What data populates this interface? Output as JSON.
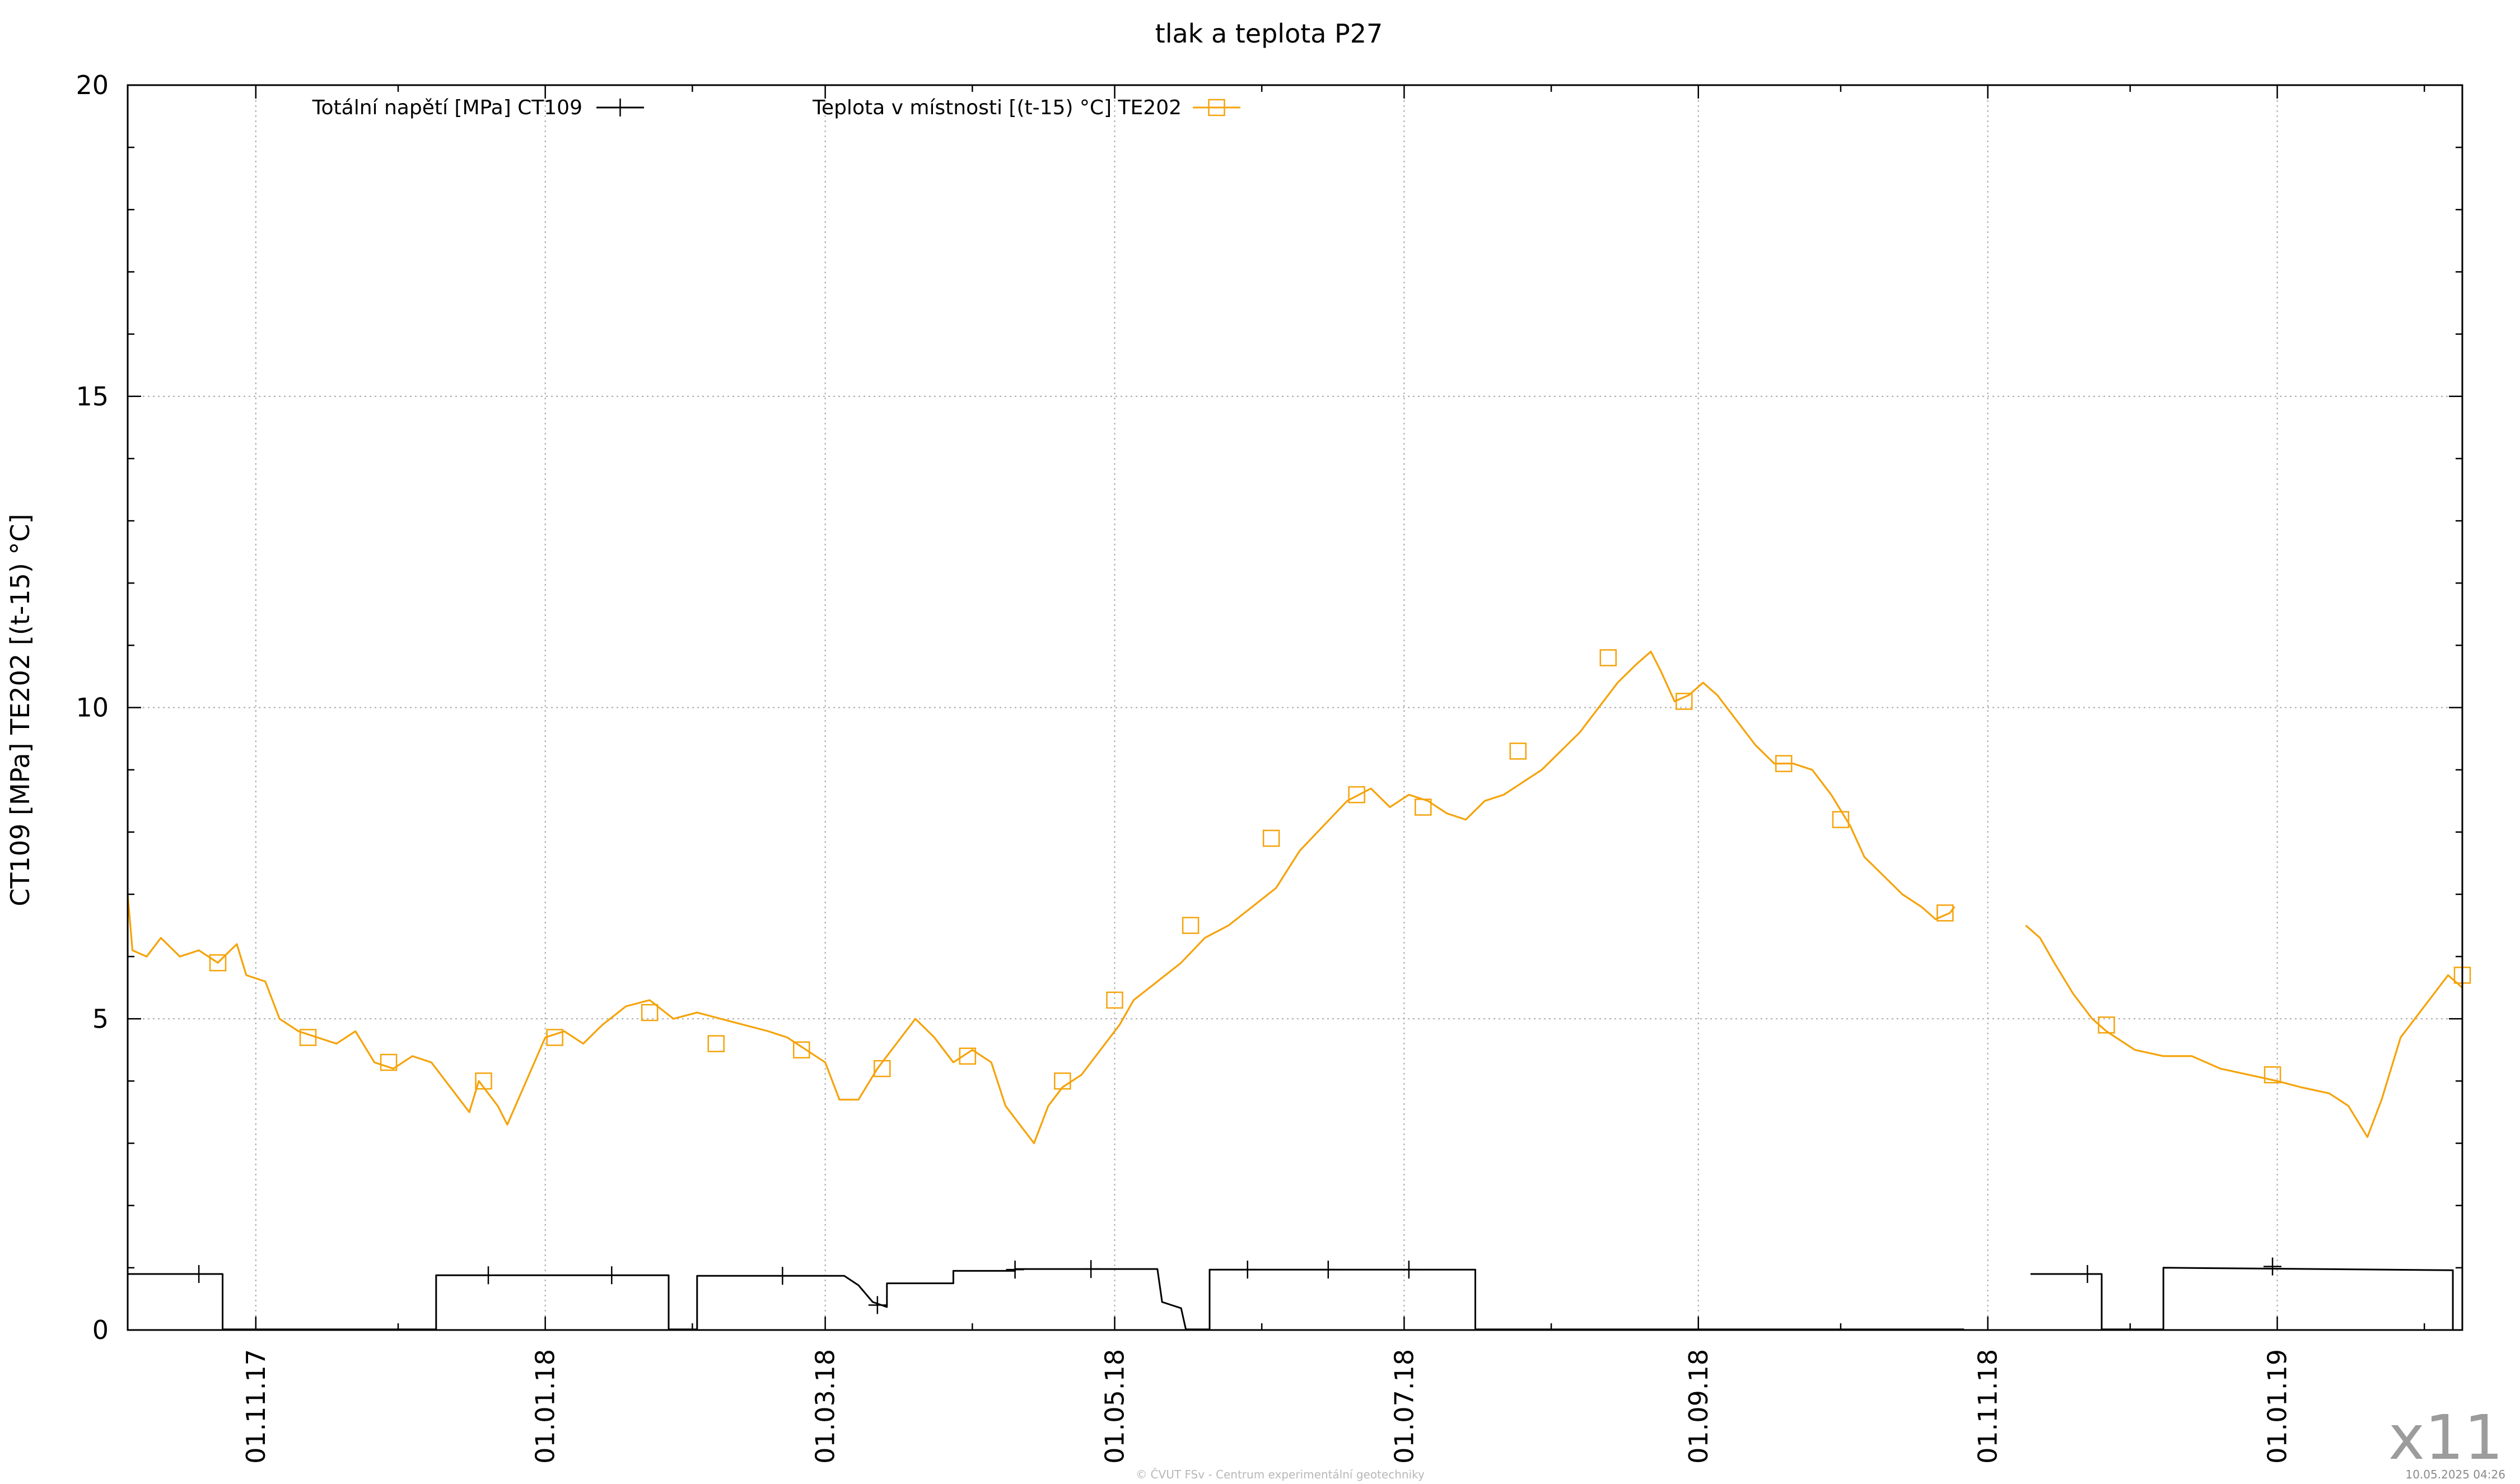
{
  "chart_data": {
    "type": "line",
    "title": "tlak a teplota P27",
    "ylabel": "CT109 [MPa] TE202 [(t-15) °C]",
    "xlabel": "",
    "ylim": [
      0,
      20
    ],
    "y_ticks": [
      "0",
      "5",
      "10",
      "15",
      "20"
    ],
    "x_range": [
      "2017-10-05",
      "2019-02-09"
    ],
    "x_ticks": [
      {
        "date": "2017-11-01",
        "label": "01.11.17"
      },
      {
        "date": "2018-01-01",
        "label": "01.01.18"
      },
      {
        "date": "2018-03-01",
        "label": "01.03.18"
      },
      {
        "date": "2018-05-01",
        "label": "01.05.18"
      },
      {
        "date": "2018-07-01",
        "label": "01.07.18"
      },
      {
        "date": "2018-09-01",
        "label": "01.09.18"
      },
      {
        "date": "2018-11-01",
        "label": "01.11.18"
      },
      {
        "date": "2019-01-01",
        "label": "01.01.19"
      }
    ],
    "grid": true,
    "legend_placement": "top",
    "series": [
      {
        "name": "Totální napětí [MPa] CT109",
        "color": "#000000",
        "marker": "plus",
        "segments": [
          [
            [
              "2017-10-05",
              0.9
            ],
            [
              "2017-10-25",
              0.9
            ],
            [
              "2017-10-25",
              0.01
            ],
            [
              "2017-12-09",
              0.01
            ],
            [
              "2017-12-09",
              0.88
            ],
            [
              "2018-01-27",
              0.88
            ],
            [
              "2018-01-27",
              0.01
            ],
            [
              "2018-02-02",
              0.01
            ],
            [
              "2018-02-02",
              0.87
            ],
            [
              "2018-03-05",
              0.87
            ],
            [
              "2018-03-08",
              0.72
            ],
            [
              "2018-03-11",
              0.45
            ],
            [
              "2018-03-14",
              0.37
            ],
            [
              "2018-03-14",
              0.75
            ],
            [
              "2018-03-28",
              0.75
            ],
            [
              "2018-03-28",
              0.95
            ],
            [
              "2018-04-10",
              0.95
            ],
            [
              "2018-04-10",
              0.98
            ],
            [
              "2018-05-10",
              0.98
            ],
            [
              "2018-05-11",
              0.45
            ],
            [
              "2018-05-15",
              0.35
            ],
            [
              "2018-05-16",
              0.01
            ],
            [
              "2018-05-21",
              0.01
            ],
            [
              "2018-05-21",
              0.97
            ],
            [
              "2018-07-16",
              0.97
            ],
            [
              "2018-07-16",
              0.01
            ],
            [
              "2018-10-27",
              0.01
            ]
          ],
          [
            [
              "2018-11-10",
              0.9
            ],
            [
              "2018-11-25",
              0.9
            ],
            [
              "2018-11-25",
              0.01
            ],
            [
              "2018-12-08",
              0.01
            ],
            [
              "2018-12-08",
              1.0
            ],
            [
              "2019-02-07",
              0.96
            ],
            [
              "2019-02-07",
              0.01
            ]
          ]
        ],
        "markers": [
          [
            "2017-10-20",
            0.9
          ],
          [
            "2017-12-20",
            0.88
          ],
          [
            "2018-01-15",
            0.88
          ],
          [
            "2018-02-20",
            0.87
          ],
          [
            "2018-03-12",
            0.4
          ],
          [
            "2018-04-10",
            0.97
          ],
          [
            "2018-04-26",
            0.98
          ],
          [
            "2018-05-29",
            0.97
          ],
          [
            "2018-06-15",
            0.97
          ],
          [
            "2018-07-02",
            0.97
          ],
          [
            "2018-11-22",
            0.9
          ],
          [
            "2018-12-31",
            1.02
          ]
        ]
      },
      {
        "name": "Teplota v místnosti [(t-15) °C] TE202",
        "color": "#f5a30a",
        "marker": "square",
        "segments": [
          [
            [
              "2017-10-05",
              7.0
            ],
            [
              "2017-10-06",
              6.1
            ],
            [
              "2017-10-09",
              6.0
            ],
            [
              "2017-10-12",
              6.3
            ],
            [
              "2017-10-16",
              6.0
            ],
            [
              "2017-10-20",
              6.1
            ],
            [
              "2017-10-24",
              5.9
            ],
            [
              "2017-10-28",
              6.2
            ],
            [
              "2017-10-30",
              5.7
            ],
            [
              "2017-11-03",
              5.6
            ],
            [
              "2017-11-06",
              5.0
            ],
            [
              "2017-11-10",
              4.8
            ],
            [
              "2017-11-14",
              4.7
            ],
            [
              "2017-11-18",
              4.6
            ],
            [
              "2017-11-22",
              4.8
            ],
            [
              "2017-11-26",
              4.3
            ],
            [
              "2017-11-30",
              4.2
            ],
            [
              "2017-12-04",
              4.4
            ],
            [
              "2017-12-08",
              4.3
            ],
            [
              "2017-12-12",
              3.9
            ],
            [
              "2017-12-16",
              3.5
            ],
            [
              "2017-12-18",
              4.0
            ],
            [
              "2017-12-22",
              3.6
            ],
            [
              "2017-12-24",
              3.3
            ],
            [
              "2017-12-28",
              4.0
            ],
            [
              "2018-01-01",
              4.7
            ],
            [
              "2018-01-05",
              4.8
            ],
            [
              "2018-01-09",
              4.6
            ],
            [
              "2018-01-13",
              4.9
            ],
            [
              "2018-01-18",
              5.2
            ],
            [
              "2018-01-23",
              5.3
            ],
            [
              "2018-01-28",
              5.0
            ],
            [
              "2018-02-02",
              5.1
            ],
            [
              "2018-02-07",
              5.0
            ],
            [
              "2018-02-12",
              4.9
            ],
            [
              "2018-02-17",
              4.8
            ],
            [
              "2018-02-21",
              4.7
            ],
            [
              "2018-02-25",
              4.5
            ],
            [
              "2018-03-01",
              4.3
            ],
            [
              "2018-03-04",
              3.7
            ],
            [
              "2018-03-08",
              3.7
            ],
            [
              "2018-03-12",
              4.2
            ],
            [
              "2018-03-16",
              4.6
            ],
            [
              "2018-03-20",
              5.0
            ],
            [
              "2018-03-24",
              4.7
            ],
            [
              "2018-03-28",
              4.3
            ],
            [
              "2018-04-01",
              4.5
            ],
            [
              "2018-04-05",
              4.3
            ],
            [
              "2018-04-08",
              3.6
            ],
            [
              "2018-04-11",
              3.3
            ],
            [
              "2018-04-14",
              3.0
            ],
            [
              "2018-04-17",
              3.6
            ],
            [
              "2018-04-20",
              3.9
            ],
            [
              "2018-04-24",
              4.1
            ],
            [
              "2018-04-28",
              4.5
            ],
            [
              "2018-05-02",
              4.9
            ],
            [
              "2018-05-05",
              5.3
            ],
            [
              "2018-05-10",
              5.6
            ],
            [
              "2018-05-15",
              5.9
            ],
            [
              "2018-05-20",
              6.3
            ],
            [
              "2018-05-25",
              6.5
            ],
            [
              "2018-05-30",
              6.8
            ],
            [
              "2018-06-04",
              7.1
            ],
            [
              "2018-06-09",
              7.7
            ],
            [
              "2018-06-14",
              8.1
            ],
            [
              "2018-06-19",
              8.5
            ],
            [
              "2018-06-24",
              8.7
            ],
            [
              "2018-06-28",
              8.4
            ],
            [
              "2018-07-02",
              8.6
            ],
            [
              "2018-07-06",
              8.5
            ],
            [
              "2018-07-10",
              8.3
            ],
            [
              "2018-07-14",
              8.2
            ],
            [
              "2018-07-18",
              8.5
            ],
            [
              "2018-07-22",
              8.6
            ],
            [
              "2018-07-26",
              8.8
            ],
            [
              "2018-07-30",
              9.0
            ],
            [
              "2018-08-03",
              9.3
            ],
            [
              "2018-08-07",
              9.6
            ],
            [
              "2018-08-11",
              10.0
            ],
            [
              "2018-08-15",
              10.4
            ],
            [
              "2018-08-19",
              10.7
            ],
            [
              "2018-08-22",
              10.9
            ],
            [
              "2018-08-24",
              10.6
            ],
            [
              "2018-08-27",
              10.1
            ],
            [
              "2018-08-30",
              10.2
            ],
            [
              "2018-09-02",
              10.4
            ],
            [
              "2018-09-05",
              10.2
            ],
            [
              "2018-09-09",
              9.8
            ],
            [
              "2018-09-13",
              9.4
            ],
            [
              "2018-09-17",
              9.1
            ],
            [
              "2018-09-21",
              9.1
            ],
            [
              "2018-09-25",
              9.0
            ],
            [
              "2018-09-29",
              8.6
            ],
            [
              "2018-10-03",
              8.1
            ],
            [
              "2018-10-06",
              7.6
            ],
            [
              "2018-10-10",
              7.3
            ],
            [
              "2018-10-14",
              7.0
            ],
            [
              "2018-10-18",
              6.8
            ],
            [
              "2018-10-21",
              6.6
            ],
            [
              "2018-10-24",
              6.7
            ],
            [
              "2018-10-25",
              6.8
            ]
          ],
          [
            [
              "2018-11-09",
              6.5
            ],
            [
              "2018-11-12",
              6.3
            ],
            [
              "2018-11-15",
              5.9
            ],
            [
              "2018-11-19",
              5.4
            ],
            [
              "2018-11-23",
              5.0
            ],
            [
              "2018-11-26",
              4.8
            ],
            [
              "2018-12-02",
              4.5
            ],
            [
              "2018-12-08",
              4.4
            ],
            [
              "2018-12-14",
              4.4
            ],
            [
              "2018-12-20",
              4.2
            ],
            [
              "2018-12-26",
              4.1
            ],
            [
              "2019-01-01",
              4.0
            ],
            [
              "2019-01-06",
              3.9
            ],
            [
              "2019-01-12",
              3.8
            ],
            [
              "2019-01-16",
              3.6
            ],
            [
              "2019-01-20",
              3.1
            ],
            [
              "2019-01-23",
              3.7
            ],
            [
              "2019-01-27",
              4.7
            ],
            [
              "2019-02-01",
              5.2
            ],
            [
              "2019-02-06",
              5.7
            ],
            [
              "2019-02-09",
              5.5
            ]
          ]
        ],
        "markers": [
          [
            "2017-10-24",
            5.9
          ],
          [
            "2017-11-12",
            4.7
          ],
          [
            "2017-11-29",
            4.3
          ],
          [
            "2017-12-19",
            4.0
          ],
          [
            "2018-01-03",
            4.7
          ],
          [
            "2018-01-23",
            5.1
          ],
          [
            "2018-02-06",
            4.6
          ],
          [
            "2018-02-24",
            4.5
          ],
          [
            "2018-03-13",
            4.2
          ],
          [
            "2018-03-31",
            4.4
          ],
          [
            "2018-04-20",
            4.0
          ],
          [
            "2018-05-01",
            5.3
          ],
          [
            "2018-05-17",
            6.5
          ],
          [
            "2018-06-03",
            7.9
          ],
          [
            "2018-06-21",
            8.6
          ],
          [
            "2018-07-05",
            8.4
          ],
          [
            "2018-07-25",
            9.3
          ],
          [
            "2018-08-13",
            10.8
          ],
          [
            "2018-08-29",
            10.1
          ],
          [
            "2018-09-19",
            9.1
          ],
          [
            "2018-10-01",
            8.2
          ],
          [
            "2018-10-23",
            6.7
          ],
          [
            "2018-11-26",
            4.9
          ],
          [
            "2018-12-31",
            4.1
          ],
          [
            "2019-02-09",
            5.7
          ]
        ]
      }
    ]
  },
  "corner_mark": "x11",
  "footer_credit": "© ČVUT FSv - Centrum experimentální geotechniky",
  "footer_timestamp": "10.05.2025 04:26"
}
